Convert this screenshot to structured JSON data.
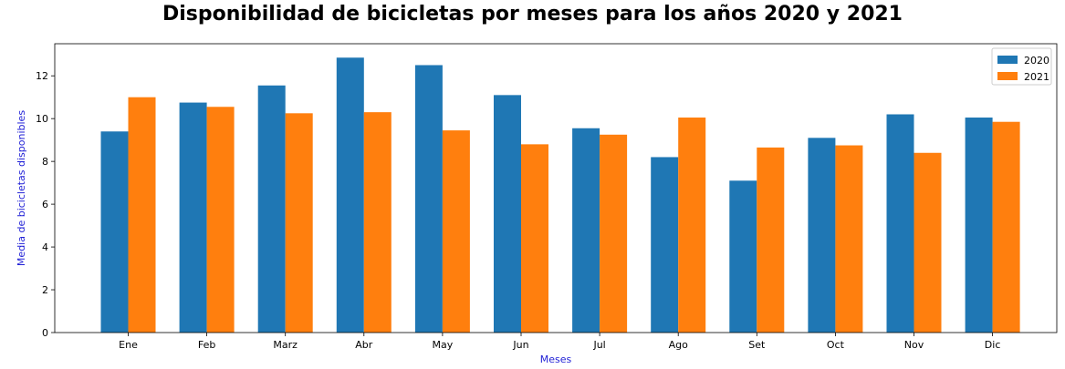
{
  "chart_data": {
    "type": "bar",
    "title": "Disponibilidad de bicicletas por meses para los años 2020 y 2021",
    "xlabel": "Meses",
    "ylabel": "Media de bicicletas disponibles",
    "categories": [
      "Ene",
      "Feb",
      "Marz",
      "Abr",
      "May",
      "Jun",
      "Jul",
      "Ago",
      "Set",
      "Oct",
      "Nov",
      "Dic"
    ],
    "series": [
      {
        "name": "2020",
        "color": "#1f77b4",
        "values": [
          9.4,
          10.75,
          11.55,
          12.85,
          12.5,
          11.1,
          9.55,
          8.2,
          7.1,
          9.1,
          10.2,
          10.05
        ]
      },
      {
        "name": "2021",
        "color": "#ff7f0e",
        "values": [
          11.0,
          10.55,
          10.25,
          10.3,
          9.45,
          8.8,
          9.25,
          10.05,
          8.65,
          8.75,
          8.4,
          9.85
        ]
      }
    ],
    "ylim": [
      0,
      13.5
    ],
    "yticks": [
      0,
      2,
      4,
      6,
      8,
      10,
      12
    ],
    "grid": false,
    "legend_position": "top-right"
  }
}
